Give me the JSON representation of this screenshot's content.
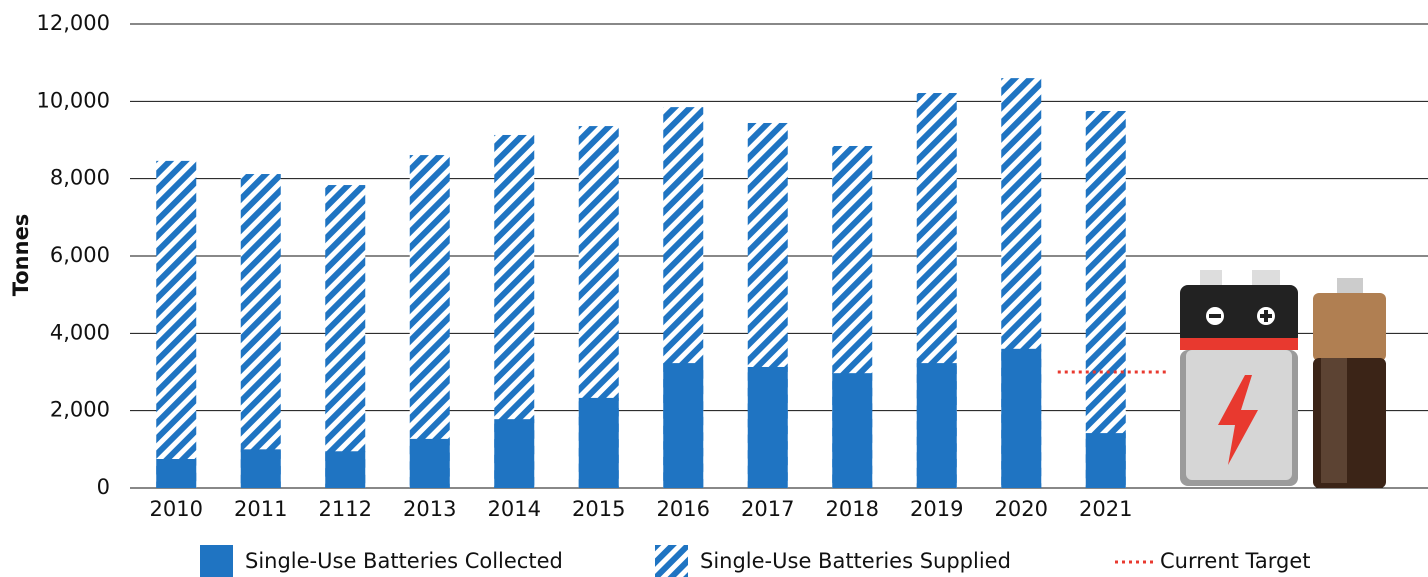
{
  "chart_data": {
    "type": "bar",
    "barmode": "overlay",
    "ylabel": "Tonnes",
    "categories": [
      "2010",
      "2011",
      "2112",
      "2013",
      "2014",
      "2015",
      "2016",
      "2017",
      "2018",
      "2019",
      "2020",
      "2021"
    ],
    "series": [
      {
        "name": "Single-Use Batteries Supplied",
        "color": "#1f74c2",
        "hatch": true,
        "values": [
          8460,
          8120,
          7835,
          8610,
          9130,
          9360,
          9850,
          9440,
          8845,
          10215,
          10600,
          9750
        ]
      },
      {
        "name": "Single-Use Batteries Collected",
        "color": "#1f74c2",
        "hatch": false,
        "values": [
          750,
          1000,
          950,
          1270,
          1780,
          2330,
          3230,
          3130,
          2970,
          3230,
          3600,
          1420
        ]
      }
    ],
    "target": {
      "name": "Current Target",
      "value": 3000,
      "color": "#e8392f"
    },
    "ylim": [
      0,
      12000
    ],
    "yticks": [
      0,
      {
        "value": 2000,
        "label": "2,000"
      },
      {
        "value": 4000,
        "label": "4,000"
      },
      {
        "value": 6000,
        "label": "6,000"
      },
      {
        "value": 8000,
        "label": "8,000"
      },
      {
        "value": 10000,
        "label": "10,000"
      },
      {
        "value": 12000,
        "label": "12,000"
      }
    ],
    "grid": true
  }
}
